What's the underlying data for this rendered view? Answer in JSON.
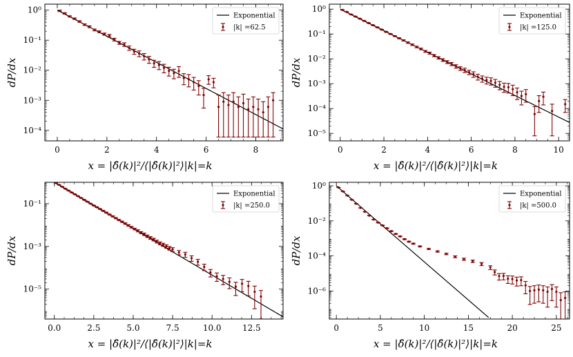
{
  "figure": {
    "ylabel": "dP/dx",
    "xlabel": "x = |δ̂(k)|²/⟨|δ̂(k)|²⟩|k|=k",
    "legend_line_label": "Exponential",
    "colors": {
      "data": "#7f0000",
      "model": "#000000"
    }
  },
  "chart_data": [
    {
      "type": "scatter",
      "legend_data_label": "|k| =62.5",
      "xlim": [
        -0.5,
        9.1
      ],
      "ylim_log10": [
        -4.35,
        0.2
      ],
      "x_ticks": [
        0,
        2,
        4,
        6,
        8
      ],
      "x_tick_labels": [
        "0",
        "2",
        "4",
        "6",
        "8"
      ],
      "y_ticks_log10": [
        -4,
        -3,
        -2,
        -1,
        0
      ],
      "y_tick_labels": [
        "10⁻⁴",
        "10⁻³",
        "10⁻²",
        "10⁻¹",
        "10⁰"
      ],
      "model": {
        "name": "Exponential",
        "function": "exp(-x)",
        "x_range": [
          0,
          9.1
        ]
      },
      "series": {
        "name": "|k| =62.5",
        "x": [
          0.1,
          0.3,
          0.5,
          0.7,
          0.9,
          1.1,
          1.3,
          1.5,
          1.7,
          1.9,
          2.1,
          2.3,
          2.5,
          2.7,
          2.9,
          3.1,
          3.3,
          3.5,
          3.7,
          3.9,
          4.1,
          4.3,
          4.5,
          4.7,
          4.9,
          5.1,
          5.3,
          5.5,
          5.7,
          5.9,
          6.1,
          6.3,
          6.5,
          6.7,
          6.9,
          7.1,
          7.3,
          7.5,
          7.7,
          7.9,
          8.1,
          8.3,
          8.5,
          8.7
        ],
        "y": [
          0.95,
          0.78,
          0.62,
          0.52,
          0.42,
          0.33,
          0.28,
          0.22,
          0.19,
          0.16,
          0.14,
          0.105,
          0.082,
          0.072,
          0.055,
          0.042,
          0.036,
          0.029,
          0.023,
          0.017,
          0.015,
          0.012,
          0.0095,
          0.008,
          0.0095,
          0.0055,
          0.005,
          0.004,
          0.003,
          0.0015,
          0.005,
          0.004,
          0.0006,
          0.0009,
          0.0007,
          0.0009,
          0.0006,
          0.0008,
          0.0005,
          0.0006,
          0.0005,
          0.0004,
          0.0006,
          0.001
        ],
        "y_lo": [
          0.9,
          0.74,
          0.59,
          0.49,
          0.395,
          0.31,
          0.26,
          0.205,
          0.176,
          0.147,
          0.125,
          0.094,
          0.073,
          0.062,
          0.046,
          0.034,
          0.028,
          0.022,
          0.017,
          0.0125,
          0.0105,
          0.0082,
          0.0064,
          0.0052,
          0.0058,
          0.0033,
          0.0028,
          0.0022,
          0.0015,
          0.00055,
          0.0034,
          0.0026,
          6e-05,
          6e-05,
          6e-05,
          6e-05,
          6e-05,
          6e-05,
          6e-05,
          6e-05,
          6e-05,
          6e-05,
          6e-05,
          6e-05
        ],
        "y_hi": [
          1.0,
          0.82,
          0.65,
          0.55,
          0.445,
          0.35,
          0.3,
          0.235,
          0.204,
          0.173,
          0.155,
          0.116,
          0.091,
          0.082,
          0.064,
          0.05,
          0.044,
          0.036,
          0.029,
          0.0215,
          0.0195,
          0.0158,
          0.0126,
          0.0108,
          0.0132,
          0.0077,
          0.0072,
          0.0058,
          0.0045,
          0.0025,
          0.0066,
          0.0054,
          0.0015,
          0.0018,
          0.0015,
          0.0018,
          0.0013,
          0.0016,
          0.0011,
          0.0013,
          0.0011,
          0.0009,
          0.0013,
          0.0018
        ]
      }
    },
    {
      "type": "scatter",
      "legend_data_label": "|k| =125.0",
      "xlim": [
        -0.5,
        10.5
      ],
      "ylim_log10": [
        -5.3,
        0.2
      ],
      "x_ticks": [
        0,
        2,
        4,
        6,
        8,
        10
      ],
      "x_tick_labels": [
        "0",
        "2",
        "4",
        "6",
        "8",
        "10"
      ],
      "y_ticks_log10": [
        -5,
        -4,
        -3,
        -2,
        -1,
        0
      ],
      "y_tick_labels": [
        "10⁻⁵",
        "10⁻⁴",
        "10⁻³",
        "10⁻²",
        "10⁻¹",
        "10⁰"
      ],
      "model": {
        "name": "Exponential",
        "function": "exp(-x)",
        "x_range": [
          0,
          10.5
        ]
      },
      "series": {
        "name": "|k| =125.0",
        "x": [
          0.1,
          0.3,
          0.5,
          0.7,
          0.9,
          1.1,
          1.3,
          1.5,
          1.7,
          1.9,
          2.1,
          2.3,
          2.5,
          2.7,
          2.9,
          3.1,
          3.3,
          3.5,
          3.7,
          3.9,
          4.1,
          4.3,
          4.5,
          4.7,
          4.9,
          5.1,
          5.3,
          5.5,
          5.7,
          5.9,
          6.1,
          6.3,
          6.5,
          6.7,
          6.9,
          7.1,
          7.3,
          7.5,
          7.7,
          7.9,
          8.1,
          8.3,
          8.5,
          8.9,
          9.1,
          9.3,
          9.7,
          10.3
        ],
        "y": [
          0.93,
          0.77,
          0.61,
          0.5,
          0.41,
          0.335,
          0.275,
          0.225,
          0.185,
          0.15,
          0.122,
          0.1,
          0.082,
          0.067,
          0.055,
          0.045,
          0.037,
          0.03,
          0.025,
          0.02,
          0.017,
          0.0135,
          0.011,
          0.009,
          0.0074,
          0.0062,
          0.005,
          0.0041,
          0.0035,
          0.0029,
          0.0024,
          0.0019,
          0.0016,
          0.0014,
          0.0013,
          0.0011,
          0.0009,
          0.00075,
          0.00072,
          0.0006,
          0.00045,
          0.00032,
          0.00038,
          6e-05,
          0.0002,
          0.0003,
          8e-05,
          0.00015
        ],
        "y_lo": [
          0.915,
          0.757,
          0.6,
          0.491,
          0.402,
          0.328,
          0.269,
          0.22,
          0.18,
          0.146,
          0.118,
          0.097,
          0.079,
          0.064,
          0.052,
          0.042,
          0.0345,
          0.0278,
          0.023,
          0.0183,
          0.0154,
          0.0121,
          0.0098,
          0.0079,
          0.0064,
          0.0053,
          0.0042,
          0.0034,
          0.0028,
          0.0023,
          0.0018,
          0.0014,
          0.00115,
          0.00097,
          0.00088,
          0.00072,
          0.00057,
          0.00045,
          0.00042,
          0.00033,
          0.00023,
          0.00014,
          0.00018,
          8e-06,
          7e-05,
          0.00014,
          8e-06,
          7e-05
        ],
        "y_hi": [
          0.945,
          0.783,
          0.62,
          0.509,
          0.418,
          0.342,
          0.281,
          0.23,
          0.19,
          0.154,
          0.126,
          0.103,
          0.085,
          0.07,
          0.058,
          0.048,
          0.0395,
          0.0322,
          0.027,
          0.0217,
          0.0186,
          0.0149,
          0.0122,
          0.0101,
          0.0084,
          0.0071,
          0.0058,
          0.0048,
          0.0042,
          0.0035,
          0.003,
          0.0024,
          0.00205,
          0.00183,
          0.00172,
          0.00148,
          0.00123,
          0.00105,
          0.00102,
          0.00087,
          0.00067,
          0.0005,
          0.00058,
          0.00012,
          0.00033,
          0.00046,
          0.00015,
          0.00023
        ]
      }
    },
    {
      "type": "scatter",
      "legend_data_label": "|k| =250.0",
      "xlim": [
        -0.6,
        14.5
      ],
      "ylim_log10": [
        -6.4,
        0.0
      ],
      "x_ticks": [
        0,
        2.5,
        5,
        7.5,
        10,
        12.5
      ],
      "x_tick_labels": [
        "0.0",
        "2.5",
        "5.0",
        "7.5",
        "10.0",
        "12.5"
      ],
      "y_ticks_log10": [
        -5,
        -3,
        -1
      ],
      "y_tick_labels": [
        "10⁻⁵",
        "10⁻³",
        "10⁻¹"
      ],
      "model": {
        "name": "Exponential",
        "function": "exp(-x)",
        "x_range": [
          0,
          14.5
        ]
      },
      "series": {
        "name": "|k| =250.0",
        "x": [
          0.1,
          0.3,
          0.5,
          0.7,
          0.9,
          1.1,
          1.3,
          1.5,
          1.7,
          1.9,
          2.1,
          2.3,
          2.5,
          2.7,
          2.9,
          3.1,
          3.3,
          3.5,
          3.7,
          3.9,
          4.1,
          4.3,
          4.5,
          4.7,
          4.9,
          5.1,
          5.3,
          5.5,
          5.7,
          5.9,
          6.1,
          6.3,
          6.5,
          6.7,
          6.9,
          7.1,
          7.3,
          7.5,
          7.9,
          8.3,
          8.7,
          9.1,
          9.5,
          9.9,
          10.3,
          10.7,
          11.1,
          11.5,
          11.9,
          12.3,
          12.7,
          13.1
        ],
        "y": [
          0.93,
          0.76,
          0.62,
          0.5,
          0.41,
          0.335,
          0.275,
          0.225,
          0.185,
          0.15,
          0.123,
          0.1,
          0.082,
          0.068,
          0.056,
          0.046,
          0.038,
          0.031,
          0.0255,
          0.021,
          0.0172,
          0.0142,
          0.0117,
          0.0096,
          0.0079,
          0.0065,
          0.0054,
          0.0044,
          0.0037,
          0.003,
          0.0025,
          0.0021,
          0.0017,
          0.0014,
          0.0012,
          0.001,
          0.00083,
          0.00072,
          0.00052,
          0.00042,
          0.00028,
          0.00019,
          0.00011,
          6e-05,
          4e-05,
          3e-05,
          2.2e-05,
          1.3e-05,
          1.8e-05,
          1.4e-05,
          7.5e-06,
          4.5e-06
        ],
        "y_lo": [
          0.92,
          0.752,
          0.614,
          0.495,
          0.405,
          0.331,
          0.271,
          0.222,
          0.182,
          0.147,
          0.12,
          0.098,
          0.08,
          0.066,
          0.054,
          0.044,
          0.036,
          0.0295,
          0.024,
          0.0197,
          0.0161,
          0.0132,
          0.0108,
          0.0088,
          0.0072,
          0.0059,
          0.0048,
          0.0039,
          0.0032,
          0.0026,
          0.00215,
          0.0018,
          0.00145,
          0.00118,
          0.001,
          0.00082,
          0.00067,
          0.00057,
          0.0004,
          0.00031,
          0.0002,
          0.000132,
          7.3e-05,
          3.7e-05,
          2.3e-05,
          1.6e-05,
          1.05e-05,
          5e-06,
          7.5e-06,
          4.8e-06,
          1.2e-06,
          4e-07
        ],
        "y_hi": [
          0.94,
          0.768,
          0.626,
          0.505,
          0.415,
          0.339,
          0.279,
          0.228,
          0.188,
          0.153,
          0.126,
          0.102,
          0.084,
          0.07,
          0.058,
          0.048,
          0.04,
          0.0325,
          0.027,
          0.0223,
          0.0183,
          0.0152,
          0.0126,
          0.0104,
          0.0086,
          0.0071,
          0.006,
          0.0049,
          0.0042,
          0.0034,
          0.00285,
          0.0024,
          0.00195,
          0.00162,
          0.0014,
          0.00118,
          0.00099,
          0.00087,
          0.00064,
          0.00053,
          0.00036,
          0.000248,
          0.000147,
          8.3e-05,
          5.7e-05,
          4.4e-05,
          3.35e-05,
          2.1e-05,
          2.85e-05,
          2.32e-05,
          1.38e-05,
          8.6e-06
        ]
      }
    },
    {
      "type": "scatter",
      "legend_data_label": "|k| =500.0",
      "xlim": [
        -0.8,
        26.5
      ],
      "ylim_log10": [
        -7.6,
        0.2
      ],
      "x_ticks": [
        0,
        5,
        10,
        15,
        20,
        25
      ],
      "x_tick_labels": [
        "0",
        "5",
        "10",
        "15",
        "20",
        "25"
      ],
      "y_ticks_log10": [
        -6,
        -4,
        -2,
        0
      ],
      "y_tick_labels": [
        "10⁻⁶",
        "10⁻⁴",
        "10⁻²",
        "10⁰"
      ],
      "model": {
        "name": "Exponential",
        "function": "exp(-x)",
        "x_range": [
          0,
          17.3
        ]
      },
      "series": {
        "name": "|k| =500.0",
        "x": [
          0.25,
          0.75,
          1.25,
          1.75,
          2.25,
          2.75,
          3.25,
          3.75,
          4.25,
          4.75,
          5.25,
          5.75,
          6.25,
          6.75,
          7.25,
          7.75,
          8.25,
          8.75,
          9.5,
          10.5,
          11.5,
          12.5,
          13.5,
          14.5,
          15.5,
          16.5,
          17.5,
          18.0,
          18.5,
          19.0,
          19.5,
          20.0,
          20.5,
          21.0,
          21.5,
          22.0,
          22.5,
          23.0,
          23.5,
          24.0,
          24.5,
          25.0,
          25.5,
          26.0
        ],
        "y": [
          0.8,
          0.48,
          0.28,
          0.16,
          0.095,
          0.055,
          0.033,
          0.02,
          0.012,
          0.008,
          0.0055,
          0.0038,
          0.0026,
          0.0018,
          0.0013,
          0.0009,
          0.00065,
          0.0005,
          0.00035,
          0.00025,
          0.00018,
          0.00013,
          9e-05,
          6.5e-05,
          5e-05,
          3.5e-05,
          2.2e-05,
          1.2e-05,
          7e-06,
          7.2e-06,
          5e-06,
          4.8e-06,
          4e-06,
          4.2e-06,
          2.1e-06,
          1e-06,
          1.1e-06,
          1.2e-06,
          1.1e-06,
          9e-07,
          1.3e-06,
          9e-07,
          3e-07,
          4e-07
        ],
        "y_lo": [
          0.79,
          0.474,
          0.276,
          0.157,
          0.093,
          0.0538,
          0.0322,
          0.0194,
          0.0116,
          0.0077,
          0.0053,
          0.00365,
          0.00249,
          0.00172,
          0.00124,
          0.00085,
          0.00061,
          0.00047,
          0.000325,
          0.00023,
          0.000164,
          0.000117,
          7.9e-05,
          5.6e-05,
          4.2e-05,
          2.8e-05,
          1.65e-05,
          8.2e-06,
          4.2e-06,
          4.3e-06,
          2.7e-06,
          2.5e-06,
          1.9e-06,
          2e-06,
          6.9e-07,
          1.7e-07,
          2e-07,
          2.4e-07,
          2e-07,
          1.2e-07,
          2.8e-07,
          1.2e-07,
          2.5e-08,
          2.5e-08
        ],
        "y_hi": [
          0.81,
          0.486,
          0.284,
          0.163,
          0.097,
          0.0562,
          0.0338,
          0.0206,
          0.0124,
          0.0083,
          0.0057,
          0.00395,
          0.00271,
          0.00188,
          0.00136,
          0.00095,
          0.00069,
          0.00053,
          0.000375,
          0.00027,
          0.000196,
          0.000143,
          0.000101,
          7.4e-05,
          5.8e-05,
          4.2e-05,
          2.75e-05,
          1.58e-05,
          9.8e-06,
          1.01e-05,
          7.3e-06,
          7.1e-06,
          6.1e-06,
          6.4e-06,
          3.5e-06,
          1.8e-06,
          2e-06,
          2.2e-06,
          2e-06,
          1.7e-06,
          2.3e-06,
          1.7e-06,
          8e-07,
          9e-07
        ]
      }
    }
  ]
}
